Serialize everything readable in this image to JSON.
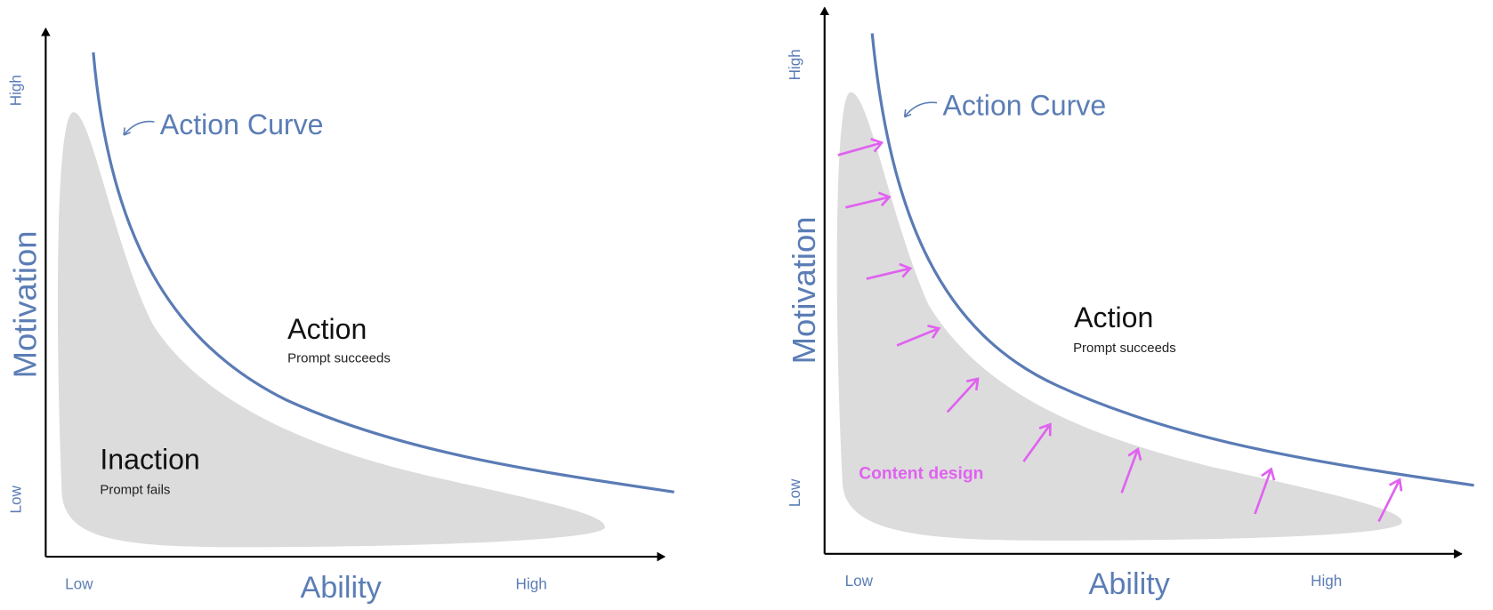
{
  "panels": [
    {
      "y_axis": {
        "label": "Motivation",
        "high": "High",
        "low": "Low"
      },
      "x_axis": {
        "label": "Ability",
        "low": "Low",
        "high": "High"
      },
      "curve_label": "Action Curve",
      "above": {
        "title": "Action",
        "subtitle": "Prompt succeeds"
      },
      "below": {
        "title": "Inaction",
        "subtitle": "Prompt fails"
      }
    },
    {
      "y_axis": {
        "label": "Motivation",
        "high": "High",
        "low": "Low"
      },
      "x_axis": {
        "label": "Ability",
        "low": "Low",
        "high": "High"
      },
      "curve_label": "Action Curve",
      "above": {
        "title": "Action",
        "subtitle": "Prompt succeeds"
      },
      "annotation": "Content design"
    }
  ]
}
